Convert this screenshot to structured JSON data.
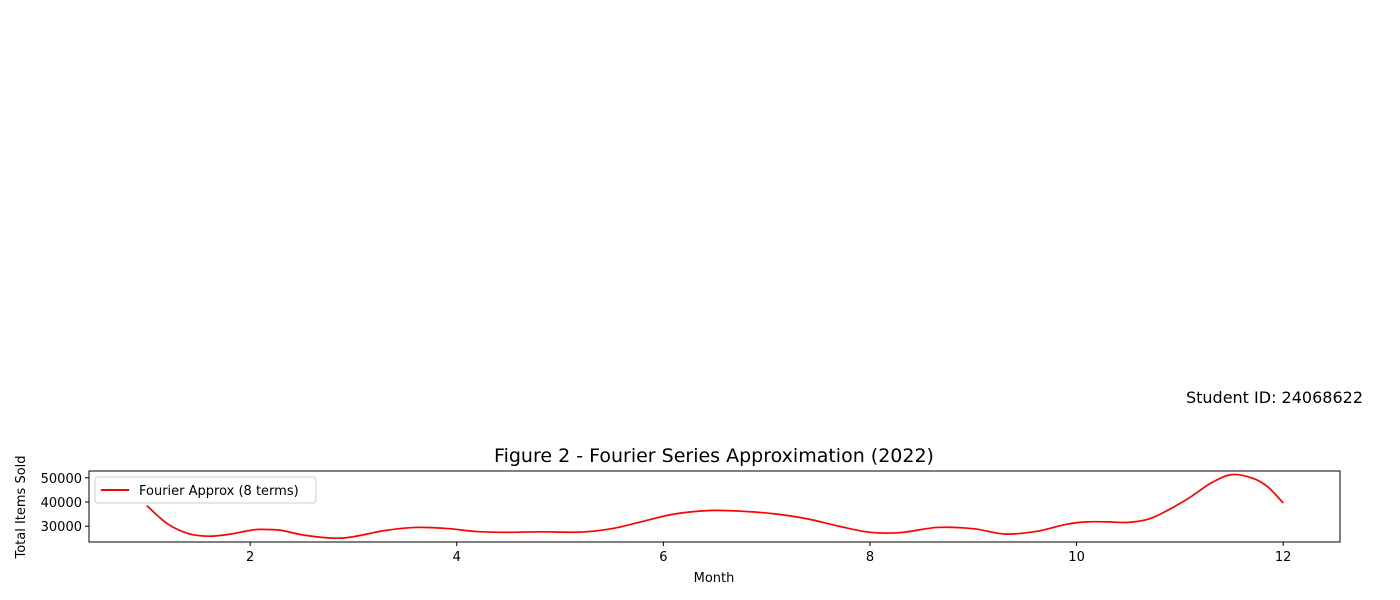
{
  "annotation": "Student ID: 24068622",
  "chart_data": {
    "type": "line",
    "title": "Figure 2 - Fourier Series Approximation (2022)",
    "xlabel": "Month",
    "ylabel": "Total Items Sold",
    "xlim": [
      0.44,
      12.55
    ],
    "ylim": [
      23500,
      52800
    ],
    "xticks": [
      2,
      4,
      6,
      8,
      10,
      12
    ],
    "yticks": [
      30000,
      40000,
      50000
    ],
    "xtick_labels": [
      "2",
      "4",
      "6",
      "8",
      "10",
      "12"
    ],
    "ytick_labels": [
      "30000",
      "40000",
      "50000"
    ],
    "grid": false,
    "legend_position": "upper-left",
    "colors": {
      "series": "#ff0000",
      "axes": "#000000",
      "legend_border": "#cccccc"
    },
    "series": [
      {
        "name": "Fourier Approx (8 terms)",
        "x": [
          1.0,
          1.2,
          1.4,
          1.6,
          1.8,
          2.0,
          2.1,
          2.3,
          2.5,
          2.8,
          3.0,
          3.3,
          3.6,
          3.9,
          4.2,
          4.5,
          4.8,
          5.2,
          5.5,
          5.8,
          6.1,
          6.45,
          6.8,
          7.1,
          7.4,
          7.7,
          8.0,
          8.3,
          8.65,
          9.0,
          9.3,
          9.6,
          9.9,
          10.1,
          10.3,
          10.5,
          10.7,
          10.9,
          11.1,
          11.3,
          11.5,
          11.7,
          11.85,
          12.0
        ],
        "y": [
          38500,
          31000,
          27000,
          25900,
          26700,
          28300,
          28700,
          28300,
          26500,
          25100,
          25700,
          28200,
          29500,
          29100,
          27800,
          27500,
          27700,
          27600,
          29000,
          32000,
          35000,
          36500,
          36100,
          35000,
          33000,
          30000,
          27500,
          27400,
          29500,
          29000,
          26800,
          27800,
          30800,
          31800,
          31800,
          31600,
          33000,
          37000,
          42000,
          47800,
          51300,
          49900,
          46300,
          39600
        ]
      }
    ]
  }
}
